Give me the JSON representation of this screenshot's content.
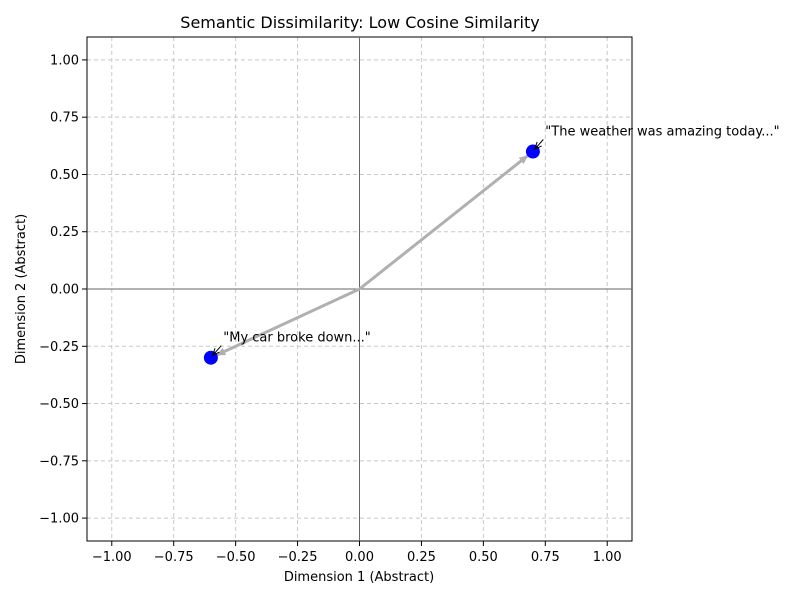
{
  "chart_data": {
    "type": "scatter",
    "title": "Semantic Dissimilarity: Low Cosine Similarity",
    "xlabel": "Dimension 1 (Abstract)",
    "ylabel": "Dimension 2 (Abstract)",
    "xlim": [
      -1.1,
      1.1
    ],
    "ylim": [
      -1.1,
      1.1
    ],
    "x_ticks": [
      -1.0,
      -0.75,
      -0.5,
      -0.25,
      0.0,
      0.25,
      0.5,
      0.75,
      1.0
    ],
    "y_ticks": [
      -1.0,
      -0.75,
      -0.5,
      -0.25,
      0.0,
      0.25,
      0.5,
      0.75,
      1.0
    ],
    "x_tick_labels": [
      "−1.00",
      "−0.75",
      "−0.50",
      "−0.25",
      "0.00",
      "0.25",
      "0.50",
      "0.75",
      "1.00"
    ],
    "y_tick_labels": [
      "−1.00",
      "−0.75",
      "−0.50",
      "−0.25",
      "0.00",
      "0.25",
      "0.50",
      "0.75",
      "1.00"
    ],
    "grid": true,
    "origin": [
      0,
      0
    ],
    "vectors": [
      {
        "x": 0.7,
        "y": 0.6,
        "label": "\"The weather was amazing today...\"",
        "label_anchor": [
          0.75,
          0.67
        ]
      },
      {
        "x": -0.6,
        "y": -0.3,
        "label": "\"My car broke down...\"",
        "label_anchor": [
          -0.55,
          -0.23
        ]
      }
    ],
    "colors": {
      "point": "#0000ff",
      "vector": "#b0b0b0",
      "annotation_arrow": "#000000",
      "grid": "#c8c8c8",
      "zero_line": "#666666"
    }
  }
}
